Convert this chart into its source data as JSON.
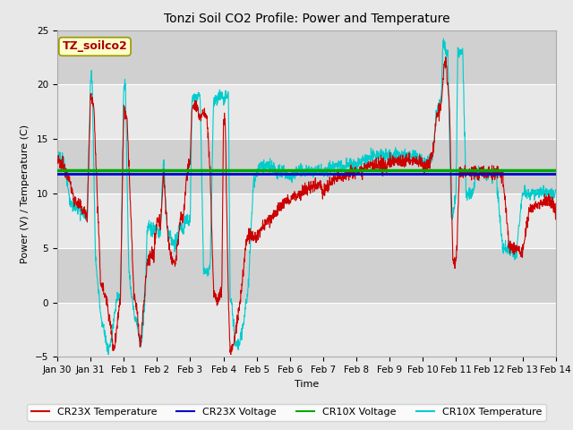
{
  "title": "Tonzi Soil CO2 Profile: Power and Temperature",
  "xlabel": "Time",
  "ylabel": "Power (V) / Temperature (C)",
  "ylim": [
    -5,
    25
  ],
  "yticks": [
    -5,
    0,
    5,
    10,
    15,
    20,
    25
  ],
  "cr23x_voltage": 11.8,
  "cr10x_voltage": 12.15,
  "outer_bg": "#e8e8e8",
  "plot_bg": "#dcdcdc",
  "band_light": "#e8e8e8",
  "band_dark": "#d0d0d0",
  "annotation_box_color": "#ffffcc",
  "annotation_text": "TZ_soilco2",
  "annotation_text_color": "#aa0000",
  "annotation_edge_color": "#999900",
  "legend_entries": [
    "CR23X Temperature",
    "CR23X Voltage",
    "CR10X Voltage",
    "CR10X Temperature"
  ],
  "cr23x_temp_color": "#cc0000",
  "cr23x_volt_color": "#0000cc",
  "cr10x_volt_color": "#00aa00",
  "cr10x_temp_color": "#00cccc",
  "x_tick_labels": [
    "Jan 30",
    "Jan 31",
    "Feb 1",
    "Feb 2",
    "Feb 3",
    "Feb 4",
    "Feb 5",
    "Feb 6",
    "Feb 7",
    "Feb 8",
    "Feb 9",
    "Feb 10",
    "Feb 11",
    "Feb 12",
    "Feb 13",
    "Feb 14"
  ],
  "title_fontsize": 10,
  "axis_label_fontsize": 8,
  "tick_fontsize": 7.5,
  "legend_fontsize": 8
}
